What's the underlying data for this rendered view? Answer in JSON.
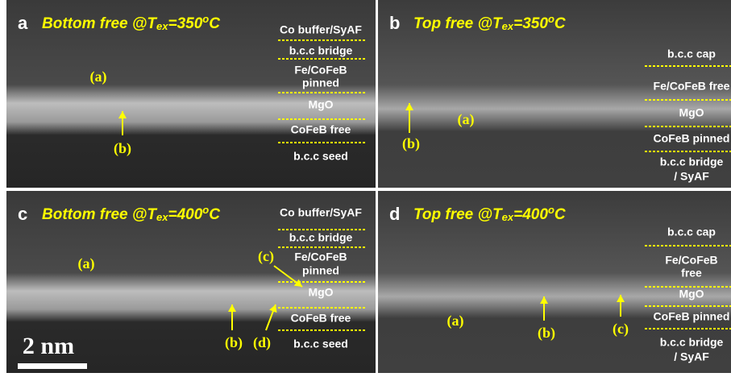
{
  "panels": [
    {
      "letter": "a",
      "title": {
        "main": "Bottom free @T",
        "sub": "ex",
        "mid": "=350",
        "sup": "o",
        "end": "C"
      },
      "layers": [
        [
          "Co buffer/SyAF"
        ],
        [
          "b.c.c bridge"
        ],
        [
          "Fe/CoFeB",
          "pinned"
        ],
        [
          "MgO"
        ],
        [
          "CoFeB free"
        ],
        [
          "b.c.c seed"
        ]
      ],
      "annotations": [
        "(a)",
        "(b)"
      ]
    },
    {
      "letter": "b",
      "title": {
        "main": "Top free @T",
        "sub": "ex",
        "mid": "=350",
        "sup": "o",
        "end": "C"
      },
      "layers": [
        [
          "b.c.c cap"
        ],
        [
          "Fe/CoFeB free"
        ],
        [
          "MgO"
        ],
        [
          "CoFeB pinned"
        ],
        [
          "b.c.c bridge",
          "/ SyAF"
        ]
      ],
      "annotations": [
        "(a)",
        "(b)"
      ]
    },
    {
      "letter": "c",
      "title": {
        "main": "Bottom free @T",
        "sub": "ex",
        "mid": "=400",
        "sup": "o",
        "end": "C"
      },
      "layers": [
        [
          "Co buffer/SyAF"
        ],
        [
          "b.c.c bridge"
        ],
        [
          "Fe/CoFeB",
          "pinned"
        ],
        [
          "MgO"
        ],
        [
          "CoFeB free"
        ],
        [
          "b.c.c seed"
        ]
      ],
      "annotations": [
        "(a)",
        "(b)",
        "(c)",
        "(d)"
      ]
    },
    {
      "letter": "d",
      "title": {
        "main": "Top free @T",
        "sub": "ex",
        "mid": "=400",
        "sup": "o",
        "end": "C"
      },
      "layers": [
        [
          "b.c.c cap"
        ],
        [
          "Fe/CoFeB",
          "free"
        ],
        [
          "MgO"
        ],
        [
          "CoFeB pinned"
        ],
        [
          "b.c.c bridge",
          "/ SyAF"
        ]
      ],
      "annotations": [
        "(a)",
        "(b)",
        "(c)"
      ]
    }
  ],
  "scale_bar": "2 nm"
}
